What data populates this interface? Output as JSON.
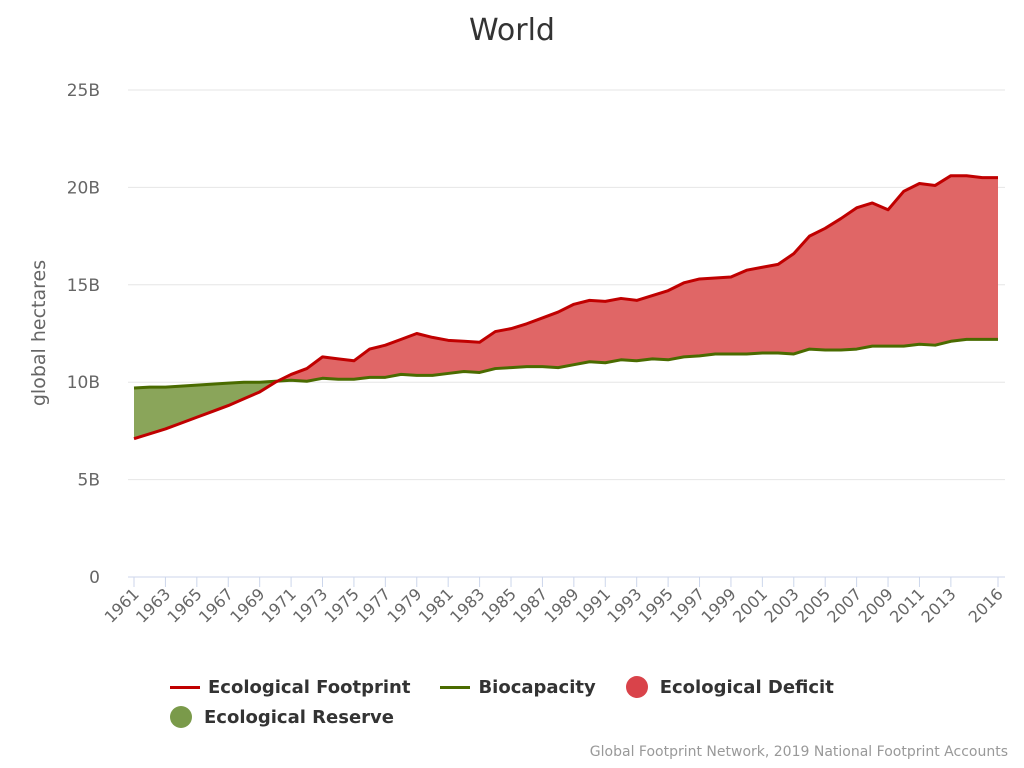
{
  "colors": {
    "footprint": "#c00000",
    "biocapacity": "#4a6b00",
    "deficit": "#e06666",
    "reserve": "#8aa55a",
    "deficit_legend": "#d9434a",
    "reserve_legend": "#7a9a4a"
  },
  "legend": {
    "footprint": "Ecological Footprint",
    "biocapacity": "Biocapacity",
    "deficit": "Ecological Deficit",
    "reserve": "Ecological Reserve"
  },
  "credits": "Global Footprint Network, 2019 National Footprint Accounts",
  "chart_data": {
    "type": "area",
    "title": "World",
    "xlabel": "",
    "ylabel": "global hectares",
    "ylim": [
      0,
      25000000000
    ],
    "yticks": [
      0,
      5000000000,
      10000000000,
      15000000000,
      20000000000,
      25000000000
    ],
    "ytick_labels": [
      "0",
      "5B",
      "10B",
      "15B",
      "20B",
      "25B"
    ],
    "xtick_labels": [
      "1961",
      "1963",
      "1965",
      "1967",
      "1969",
      "1971",
      "1973",
      "1975",
      "1977",
      "1979",
      "1981",
      "1983",
      "1985",
      "1987",
      "1989",
      "1991",
      "1993",
      "1995",
      "1997",
      "1999",
      "2001",
      "2003",
      "2005",
      "2007",
      "2009",
      "2011",
      "2013",
      "2016"
    ],
    "grid": true,
    "legend_position": "bottom",
    "x": [
      1961,
      1962,
      1963,
      1964,
      1965,
      1966,
      1967,
      1968,
      1969,
      1970,
      1971,
      1972,
      1973,
      1974,
      1975,
      1976,
      1977,
      1978,
      1979,
      1980,
      1981,
      1982,
      1983,
      1984,
      1985,
      1986,
      1987,
      1988,
      1989,
      1990,
      1991,
      1992,
      1993,
      1994,
      1995,
      1996,
      1997,
      1998,
      1999,
      2000,
      2001,
      2002,
      2003,
      2004,
      2005,
      2006,
      2007,
      2008,
      2009,
      2010,
      2011,
      2012,
      2013,
      2014,
      2015,
      2016
    ],
    "series": [
      {
        "name": "Ecological Footprint",
        "values": [
          7.1,
          7.35,
          7.6,
          7.9,
          8.2,
          8.5,
          8.8,
          9.15,
          9.5,
          10.0,
          10.4,
          10.7,
          11.3,
          11.2,
          11.1,
          11.7,
          11.9,
          12.2,
          12.5,
          12.3,
          12.15,
          12.1,
          12.05,
          12.6,
          12.75,
          13.0,
          13.3,
          13.6,
          14.0,
          14.2,
          14.15,
          14.3,
          14.2,
          14.45,
          14.7,
          15.1,
          15.3,
          15.35,
          15.4,
          15.75,
          15.9,
          16.05,
          16.6,
          17.5,
          17.9,
          18.4,
          18.95,
          19.2,
          18.85,
          19.8,
          20.2,
          20.1,
          20.6,
          20.6,
          20.5,
          20.5
        ]
      },
      {
        "name": "Biocapacity",
        "values": [
          9.7,
          9.75,
          9.75,
          9.8,
          9.85,
          9.9,
          9.95,
          10.0,
          10.0,
          10.05,
          10.1,
          10.05,
          10.2,
          10.15,
          10.15,
          10.25,
          10.25,
          10.4,
          10.35,
          10.35,
          10.45,
          10.55,
          10.5,
          10.7,
          10.75,
          10.8,
          10.8,
          10.75,
          10.9,
          11.05,
          11.0,
          11.15,
          11.1,
          11.2,
          11.15,
          11.3,
          11.35,
          11.45,
          11.45,
          11.45,
          11.5,
          11.5,
          11.45,
          11.7,
          11.65,
          11.65,
          11.7,
          11.85,
          11.85,
          11.85,
          11.95,
          11.9,
          12.1,
          12.2,
          12.2,
          12.2
        ]
      }
    ],
    "value_unit": "billion global hectares"
  }
}
